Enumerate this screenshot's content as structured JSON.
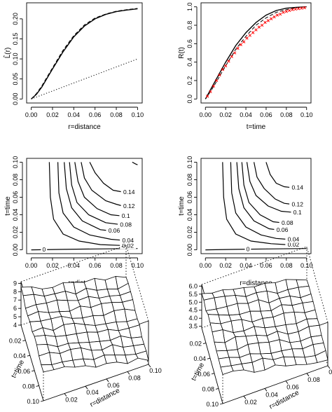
{
  "chart_data": [
    {
      "id": "p1",
      "type": "line",
      "xlabel": "r=distance",
      "ylabel": "L̂(r)",
      "xlim": [
        0,
        0.1
      ],
      "ylim": [
        0,
        0.23
      ],
      "xticks": [
        "0.00",
        "0.02",
        "0.04",
        "0.06",
        "0.08",
        "0.10"
      ],
      "yticks": [
        "0.00",
        "0.05",
        "0.10",
        "0.15",
        "0.20"
      ],
      "series": [
        {
          "style": "solid",
          "x": [
            0,
            0.005,
            0.01,
            0.02,
            0.03,
            0.04,
            0.05,
            0.06,
            0.07,
            0.08,
            0.09,
            0.1
          ],
          "y": [
            0,
            0.012,
            0.03,
            0.075,
            0.118,
            0.155,
            0.182,
            0.2,
            0.211,
            0.218,
            0.222,
            0.225
          ]
        },
        {
          "style": "dashed",
          "x": [
            0,
            0.005,
            0.01,
            0.02,
            0.03,
            0.04,
            0.05,
            0.06,
            0.07,
            0.08,
            0.09,
            0.1
          ],
          "y": [
            0,
            0.014,
            0.033,
            0.078,
            0.122,
            0.158,
            0.185,
            0.202,
            0.212,
            0.219,
            0.223,
            0.226
          ]
        },
        {
          "style": "dotted",
          "x": [
            0,
            0.1
          ],
          "y": [
            0,
            0.1
          ]
        }
      ]
    },
    {
      "id": "p2",
      "type": "line",
      "xlabel": "t=time",
      "ylabel": "R(t)",
      "xlim": [
        0,
        0.1
      ],
      "ylim": [
        0,
        1.0
      ],
      "xticks": [
        "0.00",
        "0.02",
        "0.04",
        "0.06",
        "0.08",
        "0.10"
      ],
      "yticks": [
        "0.0",
        "0.2",
        "0.4",
        "0.6",
        "0.8",
        "1.0"
      ],
      "series": [
        {
          "style": "solid",
          "x": [
            0,
            0.005,
            0.01,
            0.02,
            0.03,
            0.04,
            0.05,
            0.06,
            0.07,
            0.08,
            0.09,
            0.1
          ],
          "y": [
            0,
            0.1,
            0.2,
            0.4,
            0.58,
            0.72,
            0.83,
            0.91,
            0.96,
            0.985,
            0.995,
            1.0
          ]
        },
        {
          "style": "dashed",
          "x": [
            0,
            0.005,
            0.01,
            0.02,
            0.03,
            0.04,
            0.05,
            0.06,
            0.07,
            0.08,
            0.09,
            0.1
          ],
          "y": [
            0,
            0.08,
            0.17,
            0.36,
            0.54,
            0.68,
            0.8,
            0.88,
            0.94,
            0.97,
            0.99,
            1.0
          ]
        },
        {
          "style": "red-points",
          "color": "#ff0000",
          "x": [
            0.002,
            0.005,
            0.008,
            0.011,
            0.014,
            0.017,
            0.02,
            0.023,
            0.026,
            0.029,
            0.032,
            0.035,
            0.038,
            0.041,
            0.044,
            0.047,
            0.05,
            0.053,
            0.056,
            0.059,
            0.062,
            0.065,
            0.068,
            0.071,
            0.074,
            0.077,
            0.08,
            0.083,
            0.086,
            0.089,
            0.092,
            0.095,
            0.098
          ],
          "y": [
            0.03,
            0.08,
            0.14,
            0.2,
            0.26,
            0.32,
            0.36,
            0.41,
            0.46,
            0.5,
            0.55,
            0.59,
            0.62,
            0.66,
            0.69,
            0.72,
            0.75,
            0.78,
            0.8,
            0.83,
            0.85,
            0.87,
            0.89,
            0.91,
            0.92,
            0.94,
            0.95,
            0.96,
            0.97,
            0.975,
            0.98,
            0.985,
            0.99
          ]
        }
      ]
    },
    {
      "id": "p3",
      "type": "contour",
      "xlabel": "r=distance",
      "ylabel": "t=time",
      "xlim": [
        0,
        0.1
      ],
      "ylim": [
        0,
        0.1
      ],
      "xticks": [
        "0.00",
        "0.02",
        "0.04",
        "0.06",
        "0.08",
        "0.10"
      ],
      "yticks": [
        "0.00",
        "0.02",
        "0.04",
        "0.06",
        "0.08",
        "0.10"
      ],
      "contours": [
        {
          "label": "0",
          "x": [
            0.0,
            0.03,
            0.06,
            0.1
          ],
          "y": [
            0.0,
            0.0005,
            0.001,
            0.0015
          ],
          "label_at": [
            0.012,
            0.0005
          ]
        },
        {
          "label": "0.02",
          "x": [
            0.017,
            0.018,
            0.021,
            0.03,
            0.045,
            0.065,
            0.085
          ],
          "y": [
            0.1,
            0.06,
            0.035,
            0.018,
            0.01,
            0.006,
            0.005
          ],
          "label_at": [
            0.091,
            0.005
          ]
        },
        {
          "label": "0.04",
          "x": [
            0.025,
            0.026,
            0.03,
            0.04,
            0.055,
            0.075,
            0.085
          ],
          "y": [
            0.1,
            0.065,
            0.042,
            0.026,
            0.017,
            0.012,
            0.011
          ],
          "label_at": [
            0.091,
            0.011
          ]
        },
        {
          "label": "0.06",
          "x": [
            0.031,
            0.033,
            0.038,
            0.048,
            0.065,
            0.072
          ],
          "y": [
            0.1,
            0.07,
            0.048,
            0.033,
            0.023,
            0.022
          ],
          "label_at": [
            0.078,
            0.022
          ]
        },
        {
          "label": "0.08",
          "x": [
            0.036,
            0.038,
            0.043,
            0.054,
            0.07,
            0.083
          ],
          "y": [
            0.1,
            0.074,
            0.054,
            0.04,
            0.031,
            0.029
          ],
          "label_at": [
            0.089,
            0.029
          ]
        },
        {
          "label": "0.1",
          "x": [
            0.041,
            0.044,
            0.05,
            0.062,
            0.075,
            0.083
          ],
          "y": [
            0.1,
            0.078,
            0.06,
            0.047,
            0.04,
            0.039
          ],
          "label_at": [
            0.089,
            0.039
          ]
        },
        {
          "label": "0.12",
          "x": [
            0.047,
            0.05,
            0.057,
            0.07,
            0.08,
            0.086
          ],
          "y": [
            0.1,
            0.082,
            0.068,
            0.056,
            0.052,
            0.05
          ],
          "label_at": [
            0.092,
            0.05
          ]
        },
        {
          "label": "0.14",
          "x": [
            0.055,
            0.06,
            0.068,
            0.077,
            0.086
          ],
          "y": [
            0.1,
            0.088,
            0.076,
            0.068,
            0.066
          ],
          "label_at": [
            0.092,
            0.066
          ]
        },
        {
          "label": "",
          "x": [
            0.095,
            0.098,
            0.1
          ],
          "y": [
            0.1,
            0.098,
            0.097
          ],
          "label_at": null
        }
      ]
    },
    {
      "id": "p4",
      "type": "contour",
      "xlabel": "r=distance",
      "ylabel": "t=time",
      "xlim": [
        0,
        0.1
      ],
      "ylim": [
        0,
        0.1
      ],
      "xticks": [
        "0.00",
        "0.02",
        "0.04",
        "0.06",
        "0.08",
        "0.10"
      ],
      "yticks": [
        "0.00",
        "0.02",
        "0.04",
        "0.06",
        "0.08",
        "0.10"
      ],
      "contours": [
        {
          "label": "0",
          "x": [
            0.0,
            0.03,
            0.06,
            0.1
          ],
          "y": [
            0.0,
            0.0005,
            0.001,
            0.0015
          ],
          "label_at": [
            0.042,
            0.0008
          ]
        },
        {
          "label": "0.02",
          "x": [
            0.017,
            0.018,
            0.021,
            0.03,
            0.045,
            0.065,
            0.08
          ],
          "y": [
            0.1,
            0.06,
            0.035,
            0.018,
            0.01,
            0.007,
            0.006
          ],
          "label_at": [
            0.087,
            0.006
          ]
        },
        {
          "label": "0.04",
          "x": [
            0.025,
            0.026,
            0.03,
            0.04,
            0.055,
            0.07,
            0.081
          ],
          "y": [
            0.1,
            0.065,
            0.042,
            0.026,
            0.017,
            0.013,
            0.012
          ],
          "label_at": [
            0.087,
            0.012
          ]
        },
        {
          "label": "0.06",
          "x": [
            0.031,
            0.033,
            0.038,
            0.048,
            0.063,
            0.07
          ],
          "y": [
            0.1,
            0.07,
            0.048,
            0.033,
            0.024,
            0.023
          ],
          "label_at": [
            0.076,
            0.023
          ]
        },
        {
          "label": "0.08",
          "x": [
            0.036,
            0.038,
            0.043,
            0.054,
            0.067,
            0.075
          ],
          "y": [
            0.1,
            0.074,
            0.054,
            0.04,
            0.032,
            0.031
          ],
          "label_at": [
            0.081,
            0.031
          ]
        },
        {
          "label": "0.1",
          "x": [
            0.041,
            0.044,
            0.05,
            0.062,
            0.075,
            0.085
          ],
          "y": [
            0.1,
            0.078,
            0.062,
            0.05,
            0.044,
            0.043
          ],
          "label_at": [
            0.091,
            0.043
          ]
        },
        {
          "label": "0.12",
          "x": [
            0.048,
            0.051,
            0.058,
            0.069,
            0.078,
            0.085
          ],
          "y": [
            0.1,
            0.083,
            0.07,
            0.058,
            0.053,
            0.052
          ],
          "label_at": [
            0.091,
            0.052
          ]
        },
        {
          "label": "0.14",
          "x": [
            0.06,
            0.064,
            0.07,
            0.078,
            0.085
          ],
          "y": [
            0.1,
            0.086,
            0.076,
            0.072,
            0.071
          ],
          "label_at": [
            0.091,
            0.071
          ]
        }
      ]
    },
    {
      "id": "p5",
      "type": "surface",
      "xlabel": "r=distance",
      "ylabel": "t=time",
      "xticks": [
        "0.02",
        "0.04",
        "0.06",
        "0.08",
        "0.10"
      ],
      "yticks": [
        "0.02",
        "0.04",
        "0.06",
        "0.08",
        "0.10"
      ],
      "zticks": [
        "4",
        "5",
        "6",
        "7",
        "8",
        "9"
      ],
      "zlim": [
        4,
        9.2
      ]
    },
    {
      "id": "p6",
      "type": "surface",
      "xlabel": "r=distance",
      "ylabel": "t=time",
      "xticks": [
        "0.02",
        "0.04",
        "0.06",
        "0.08",
        "0.10"
      ],
      "yticks": [
        "0.02",
        "0.04",
        "0.06",
        "0.08",
        "0.10"
      ],
      "zticks": [
        "3.5",
        "4.0",
        "4.5",
        "5.0",
        "5.5",
        "6.0"
      ],
      "zlim": [
        3.4,
        6.1
      ]
    }
  ]
}
